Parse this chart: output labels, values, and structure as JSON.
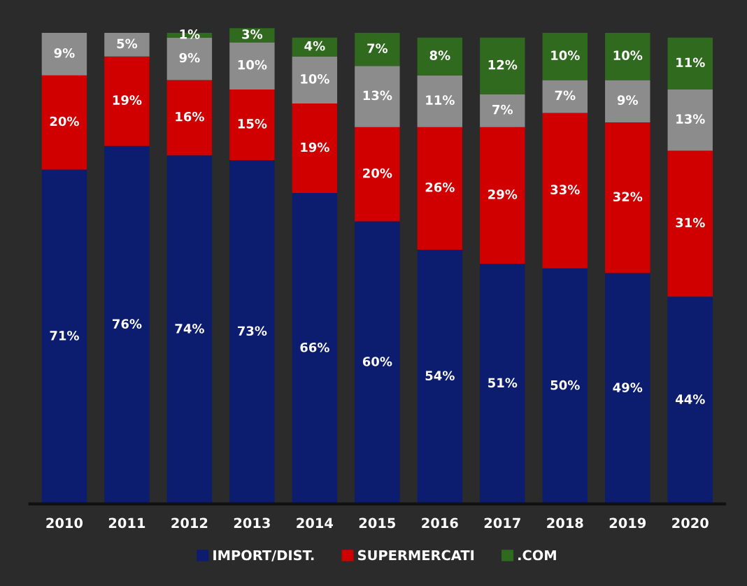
{
  "chart_data": {
    "type": "bar",
    "stacked": true,
    "categories": [
      "2010",
      "2011",
      "2012",
      "2013",
      "2014",
      "2015",
      "2016",
      "2017",
      "2018",
      "2019",
      "2020"
    ],
    "series": [
      {
        "name": "IMPORT/DIST.",
        "color": "#0c1c6e",
        "values": [
          71,
          76,
          74,
          73,
          66,
          60,
          54,
          51,
          50,
          49,
          44
        ],
        "value_labels": [
          "71%",
          "76%",
          "74%",
          "73%",
          "66%",
          "60%",
          "54%",
          "51%",
          "50%",
          "49%",
          "44%"
        ]
      },
      {
        "name": "SUPERMERCATI",
        "color": "#d00000",
        "values": [
          20,
          19,
          16,
          15,
          19,
          20,
          26,
          29,
          33,
          32,
          31
        ],
        "value_labels": [
          "20%",
          "19%",
          "16%",
          "15%",
          "19%",
          "20%",
          "26%",
          "29%",
          "33%",
          "32%",
          "31%"
        ]
      },
      {
        "color": "#8c8c8c",
        "values": [
          9,
          5,
          9,
          10,
          10,
          13,
          11,
          7,
          7,
          9,
          13
        ],
        "value_labels": [
          "9%",
          "5%",
          "9%",
          "10%",
          "10%",
          "13%",
          "11%",
          "7%",
          "7%",
          "9%",
          "13%"
        ]
      },
      {
        "name": ".COM",
        "color": "#2f6a1f",
        "values": [
          null,
          null,
          1,
          3,
          4,
          7,
          8,
          12,
          10,
          10,
          11
        ],
        "value_labels": [
          null,
          null,
          "1%",
          "3%",
          "4%",
          "7%",
          "8%",
          "12%",
          "10%",
          "10%",
          "11%"
        ]
      }
    ],
    "tick_labels": "x",
    "legend": "bottom"
  }
}
